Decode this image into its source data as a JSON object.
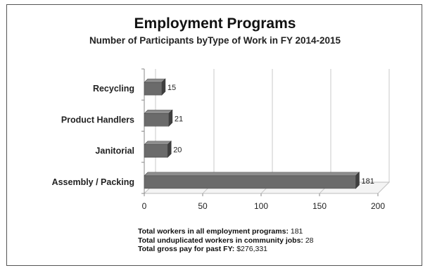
{
  "chart_data": {
    "type": "bar",
    "orientation": "horizontal",
    "style": "3d",
    "title": "Employment Programs",
    "subtitle": "Number of Participants byType of Work in FY 2014-2015",
    "categories": [
      "Recycling",
      "Product Handlers",
      "Janitorial",
      "Assembly / Packing"
    ],
    "values": [
      15,
      21,
      20,
      181
    ],
    "data_labels": [
      "15",
      "21",
      "20",
      "181"
    ],
    "xlim": [
      0,
      200
    ],
    "x_ticks": [
      "0",
      "50",
      "100",
      "150",
      "200"
    ],
    "grid": true,
    "colors": {
      "bar": "#6b6b6b",
      "bar_top": "#8e8e8e",
      "bar_side": "#3f3f3f",
      "grid": "#c8c8c8"
    }
  },
  "notes": [
    {
      "label": "Total workers in all employment programs:",
      "value": "181"
    },
    {
      "label": "Total unduplicated workers in community jobs:",
      "value": "28"
    },
    {
      "label": "Total gross pay for past FY:",
      "value": "$276,331"
    }
  ]
}
